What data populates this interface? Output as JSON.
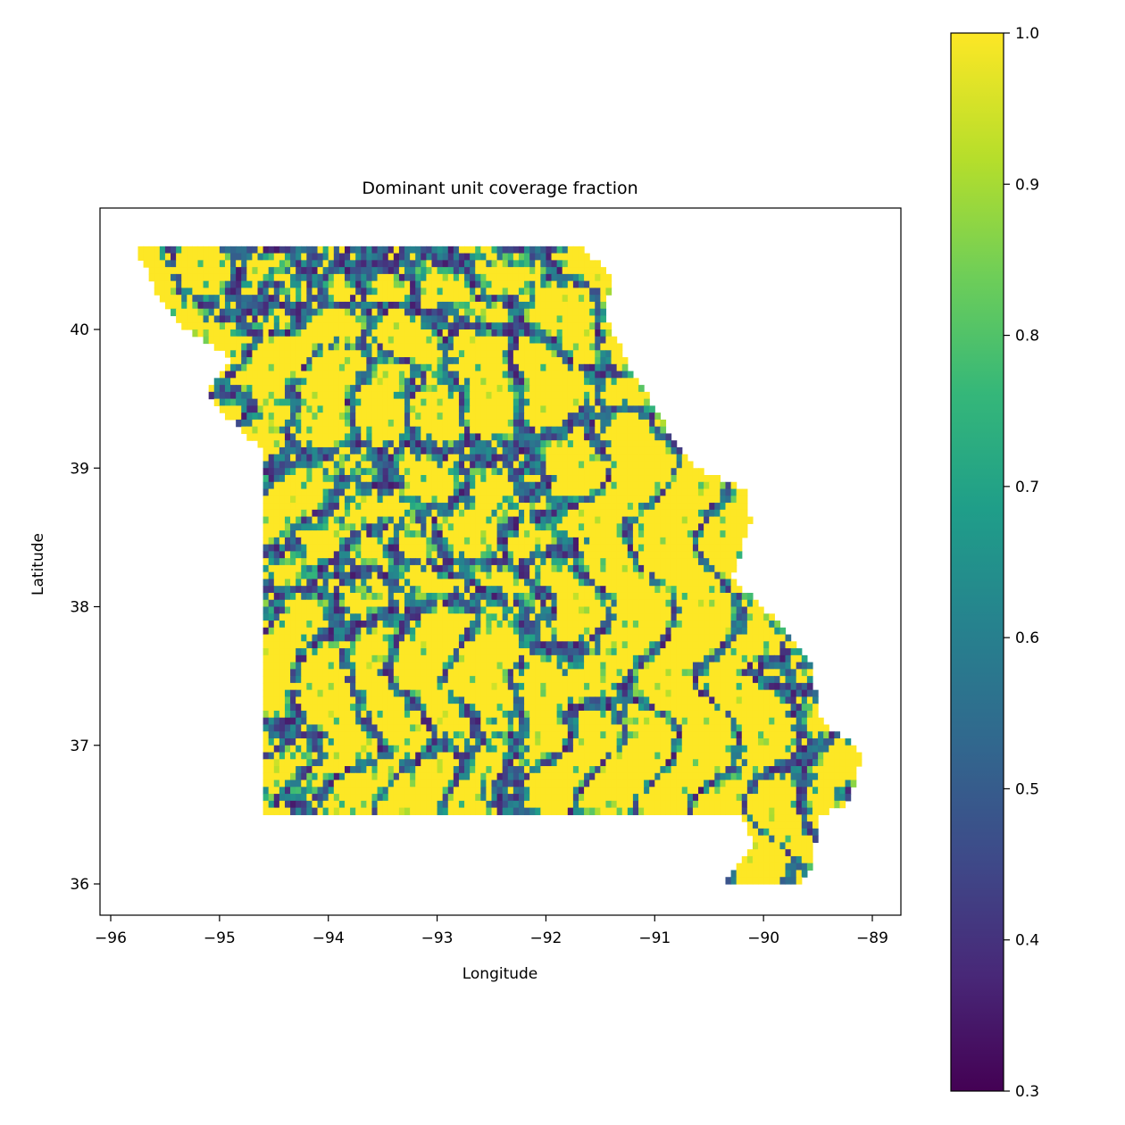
{
  "chart_data": {
    "type": "heatmap",
    "title": "Dominant unit coverage fraction",
    "xlabel": "Longitude",
    "ylabel": "Latitude",
    "xlim": [
      -96.1,
      -88.75
    ],
    "ylim": [
      35.8,
      40.9
    ],
    "xticks": [
      -96,
      -95,
      -94,
      -93,
      -92,
      -91,
      -90,
      -89
    ],
    "xtick_labels": [
      "−96",
      "−95",
      "−94",
      "−93",
      "−92",
      "−91",
      "−90",
      "−89"
    ],
    "yticks": [
      36,
      37,
      38,
      39,
      40
    ],
    "ytick_labels": [
      "36",
      "37",
      "38",
      "39",
      "40"
    ],
    "colorbar": {
      "colormap": "viridis",
      "range": [
        0.3,
        1.0
      ],
      "ticks": [
        0.3,
        0.4,
        0.5,
        0.6,
        0.7,
        0.8,
        0.9,
        1.0
      ],
      "tick_labels": [
        "0.3",
        "0.4",
        "0.5",
        "0.6",
        "0.7",
        "0.8",
        "0.9",
        "1.0"
      ]
    },
    "colormap_stops": [
      "#440154",
      "#482878",
      "#3e4a89",
      "#31688e",
      "#26828e",
      "#1f9e89",
      "#35b779",
      "#6ece58",
      "#b5de2b",
      "#fde725"
    ],
    "grid": false,
    "region_outline": [
      [
        -95.77,
        40.6
      ],
      [
        -91.7,
        40.6
      ],
      [
        -91.4,
        40.4
      ],
      [
        -91.45,
        40.1
      ],
      [
        -91.25,
        39.75
      ],
      [
        -90.9,
        39.3
      ],
      [
        -90.65,
        39.0
      ],
      [
        -90.15,
        38.85
      ],
      [
        -90.12,
        38.6
      ],
      [
        -90.3,
        38.2
      ],
      [
        -89.95,
        37.95
      ],
      [
        -89.55,
        37.6
      ],
      [
        -89.5,
        37.2
      ],
      [
        -89.1,
        36.95
      ],
      [
        -89.2,
        36.6
      ],
      [
        -89.5,
        36.5
      ],
      [
        -89.55,
        36.1
      ],
      [
        -89.7,
        36.0
      ],
      [
        -90.4,
        36.0
      ],
      [
        -90.1,
        36.3
      ],
      [
        -90.2,
        36.5
      ],
      [
        -94.62,
        36.5
      ],
      [
        -94.62,
        39.15
      ],
      [
        -94.9,
        39.35
      ],
      [
        -95.1,
        39.55
      ],
      [
        -94.9,
        39.8
      ],
      [
        -95.3,
        40.0
      ],
      [
        -95.6,
        40.3
      ]
    ],
    "cell_size_deg": 0.05,
    "value_range": [
      0.3,
      1.0
    ]
  }
}
